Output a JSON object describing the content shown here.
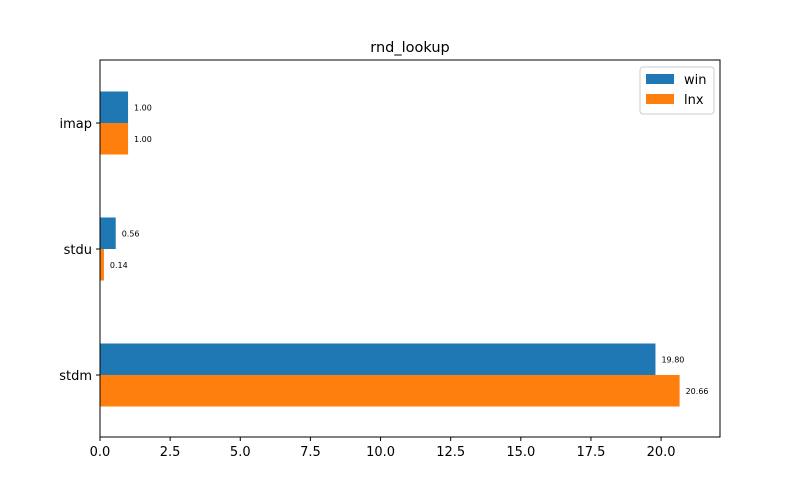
{
  "chart_data": {
    "type": "bar",
    "orientation": "horizontal",
    "title": "rnd_lookup",
    "xlabel": "",
    "ylabel": "",
    "categories": [
      "stdm",
      "stdu",
      "imap"
    ],
    "series": [
      {
        "name": "win",
        "values": [
          19.8,
          0.56,
          1.0
        ],
        "labels": [
          "19.80",
          "0.56",
          "1.00"
        ],
        "color": "#1f77b4"
      },
      {
        "name": "lnx",
        "values": [
          20.66,
          0.14,
          1.0
        ],
        "labels": [
          "20.66",
          "0.14",
          "1.00"
        ],
        "color": "#ff7f0e"
      }
    ],
    "xlim": [
      0,
      22.1
    ],
    "xticks": [
      0,
      2.5,
      5,
      7.5,
      10,
      12.5,
      15,
      17.5,
      20
    ],
    "xtick_labels": [
      "0.0",
      "2.5",
      "5.0",
      "7.5",
      "10.0",
      "12.5",
      "15.0",
      "17.5",
      "20.0"
    ],
    "grid": false,
    "legend_position": "top-right"
  }
}
